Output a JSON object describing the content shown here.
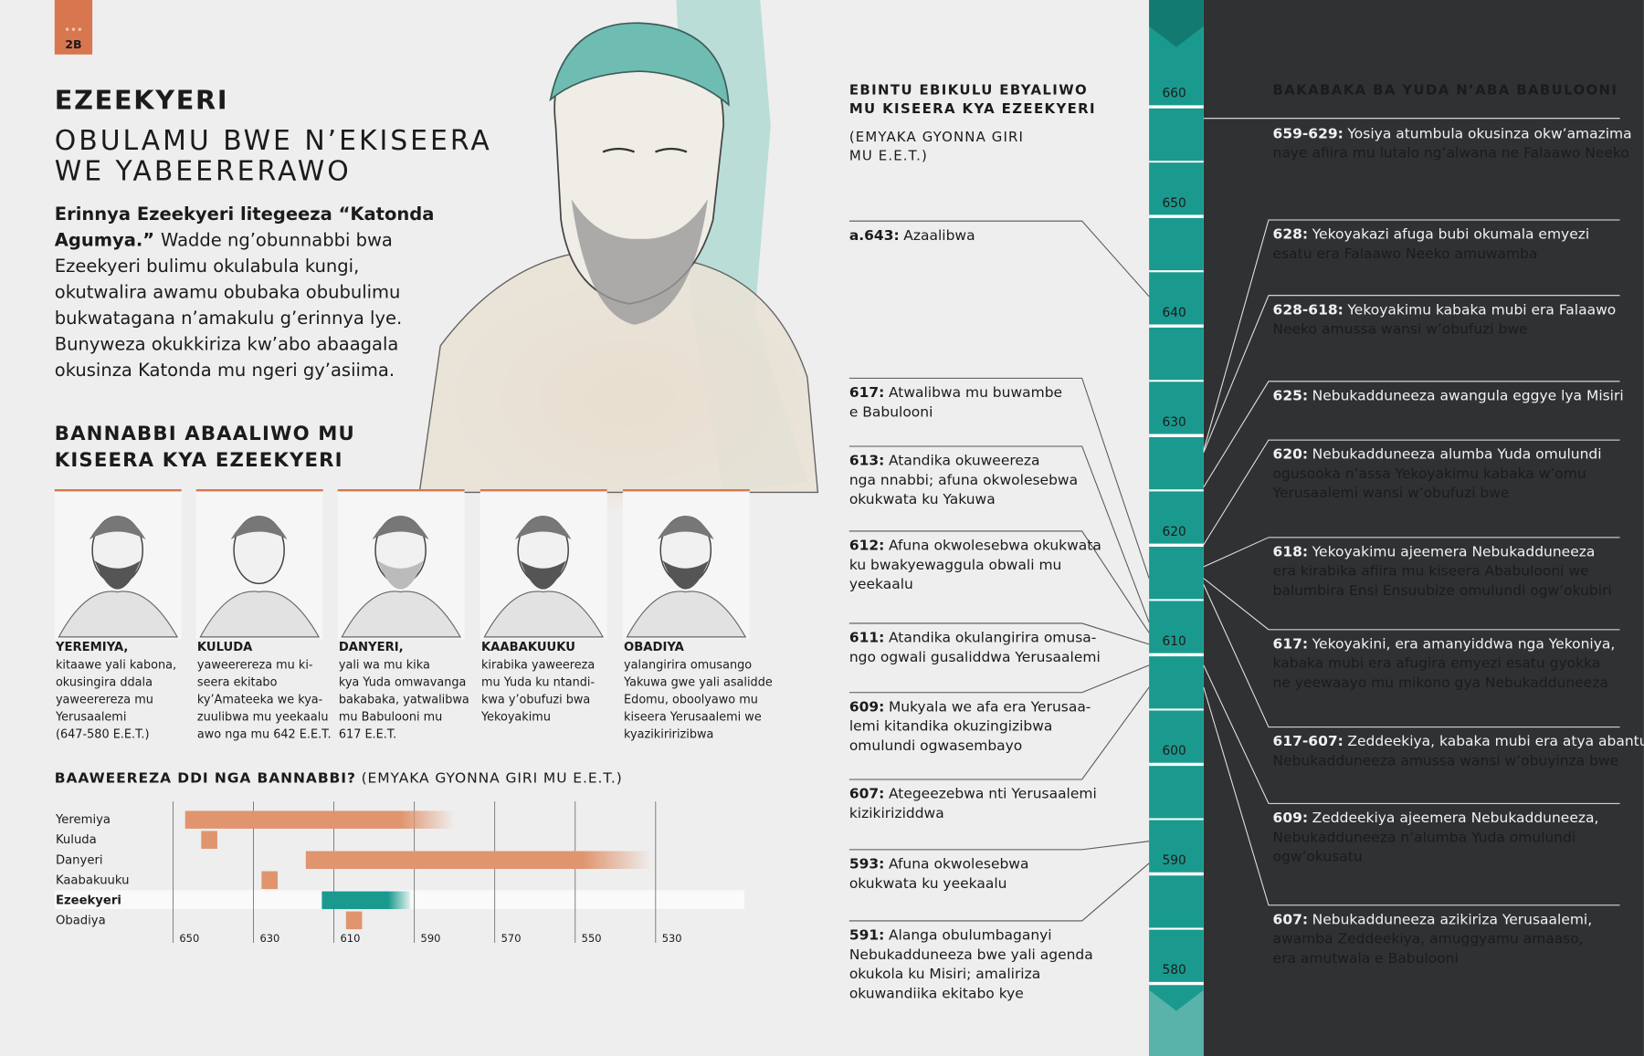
{
  "header": {
    "badge": "2B",
    "title": "EZEEKYERI",
    "subtitle": [
      "OBULAMU BWE N’EKISEERA",
      "WE YABEERERAWO"
    ]
  },
  "intro": {
    "lead": [
      "Erinnya Ezeekyeri litegeeza “Katonda",
      "Agumya.”"
    ],
    "lines": [
      "Wadde ng’obunnabbi bwa",
      "Ezeekyeri bulimu okulabula kungi,",
      "okutwalira awamu obubaka obubulimu",
      "bukwatagana n’amakulu g’erinnya lye.",
      "Bunyweza okukkiriza kw’abo abaagala",
      "okusinza Katonda mu ngeri gy’asiima."
    ]
  },
  "prophets": {
    "heading": [
      "BANNABBI ABAALIWO MU",
      "KISEERA KYA EZEEKYERI"
    ],
    "cards": [
      {
        "name": "YEREMIYA,",
        "lines": [
          "kitaawe yali kabona,",
          "okusingira ddala",
          "yaweerereza mu",
          "Yerusaalemi",
          "(647-580 E.E.T.)"
        ]
      },
      {
        "name": "KULUDA",
        "lines": [
          "yaweerereza mu ki-",
          "seera ekitabo",
          "ky’Amateeka we kya-",
          "zuulibwa mu yeekaalu",
          "awo nga mu 642 E.E.T."
        ]
      },
      {
        "name": "DANYERI,",
        "lines": [
          "yali wa mu kika",
          "kya Yuda omwavanga",
          "bakabaka, yatwalibwa",
          "mu Babulooni mu",
          "617 E.E.T."
        ]
      },
      {
        "name": "KAABAKUUKU",
        "lines": [
          "kirabika yaweereza",
          "mu Yuda ku ntandi-",
          "kwa y’obufuzi bwa",
          "Yekoyakimu"
        ]
      },
      {
        "name": "OBADIYA",
        "lines": [
          "yalangirira omusango",
          "Yakuwa gwe yali asalidde",
          "Edomu, oboolyawo mu",
          "kiseera Yerusaalemi we",
          "kyazikiririzibwa"
        ]
      }
    ]
  },
  "prophet_chart": {
    "type": "range-bar",
    "title": "BAAWEEREZA DDI NGA BANNABBI?",
    "subtitle": "(EMYAKA GYONNA GIRI MU E.E.T.)",
    "xlim": [
      650,
      510
    ],
    "xticks": [
      650,
      630,
      610,
      590,
      570,
      550,
      530
    ],
    "rows": [
      {
        "name": "Yeremiya",
        "start": 647,
        "end": 580,
        "color": "#e0956e"
      },
      {
        "name": "Kuluda",
        "start": 643,
        "end": 639,
        "color": "#e0956e"
      },
      {
        "name": "Danyeri",
        "start": 617,
        "end": 531,
        "color": "#e0956e"
      },
      {
        "name": "Kaabakuuku",
        "start": 628,
        "end": 624,
        "color": "#e0956e"
      },
      {
        "name": "Ezeekyeri",
        "start": 613,
        "end": 591,
        "color": "#1a9a8f"
      },
      {
        "name": "Obadiya",
        "start": 607,
        "end": 603,
        "color": "#e0956e"
      }
    ]
  },
  "events": {
    "heading": [
      "EBINTU EBIKULU EBYALIWO",
      "MU KISEERA KYA EZEEKYERI"
    ],
    "note": [
      "(EMYAKA GYONNA GIRI",
      "MU E.E.T.)"
    ],
    "items": [
      {
        "label": "a.643:",
        "lines": [
          "Azaalibwa"
        ]
      },
      {
        "label": "617:",
        "lines": [
          "Atwalibwa mu buwambe",
          "e Babulooni"
        ]
      },
      {
        "label": "613:",
        "lines": [
          "Atandika okuweereza",
          "nga nnabbi; afuna okwolesebwa",
          "okukwata ku Yakuwa"
        ]
      },
      {
        "label": "612:",
        "lines": [
          "Afuna okwolesebwa okukwata",
          "ku bwakyewaggula obwali mu",
          "yeekaalu"
        ]
      },
      {
        "label": "611:",
        "lines": [
          "Atandika okulangirira omusa-",
          "ngo ogwali gusaliddwa Yerusaalemi"
        ]
      },
      {
        "label": "609:",
        "lines": [
          "Mukyala we afa era Yerusaa-",
          "lemi kitandika okuzingizibwa",
          "omulundi ogwasembayo"
        ]
      },
      {
        "label": "607:",
        "lines": [
          "Ategeezebwa nti Yerusaalemi",
          "kizikiriziddwa"
        ]
      },
      {
        "label": "593:",
        "lines": [
          "Afuna okwolesebwa",
          "okukwata ku yeekaalu"
        ]
      },
      {
        "label": "591:",
        "lines": [
          "Alanga obulumbaganyi",
          "Nebukadduneeza bwe yali agenda",
          "okukola ku Misiri; amaliriza",
          "okuwandiika ekitabo kye"
        ]
      }
    ]
  },
  "timeline": {
    "years": [
      660,
      650,
      640,
      630,
      620,
      610,
      600,
      590,
      580
    ]
  },
  "kings": {
    "heading": "BAKABAKA BA YUDA N’ABA BABULOONI",
    "items": [
      {
        "label": "659-629:",
        "lines": [
          "Yosiya atumbula okusinza okw’amazima",
          "naye afiira mu lutalo ng’alwana ne Falaawo Neeko"
        ]
      },
      {
        "label": "628:",
        "lines": [
          "Yekoyakazi afuga bubi okumala emyezi",
          "esatu era Falaawo Neeko amuwamba"
        ]
      },
      {
        "label": "628-618:",
        "lines": [
          "Yekoyakimu kabaka mubi era Falaawo",
          "Neeko amussa wansi w’obufuzi bwe"
        ]
      },
      {
        "label": "625:",
        "lines": [
          "Nebukadduneeza awangula eggye lya Misiri"
        ]
      },
      {
        "label": "620:",
        "lines": [
          "Nebukadduneeza alumba Yuda omulundi",
          "ogusooka n’assa Yekoyakimu kabaka w’omu",
          "Yerusaalemi wansi w’obufuzi bwe"
        ]
      },
      {
        "label": "618:",
        "lines": [
          "Yekoyakimu ajeemera Nebukadduneeza",
          "era kirabika afiira mu kiseera Ababulooni we",
          "balumbira Ensi Ensuubize omulundi ogw’okubiri"
        ]
      },
      {
        "label": "617:",
        "lines": [
          "Yekoyakini, era amanyiddwa nga Yekoniya,",
          "kabaka mubi era afugira emyezi esatu gyokka",
          "ne yeewaayo mu mikono gya Nebukadduneeza"
        ]
      },
      {
        "label": "617-607:",
        "lines": [
          "Zeddeekiya, kabaka mubi era atya abantu,",
          "Nebukadduneeza amussa wansi w’obuyinza bwe"
        ]
      },
      {
        "label": "609:",
        "lines": [
          "Zeddeekiya ajeemera Nebukadduneeza,",
          "Nebukadduneeza n’alumba Yuda omulundi",
          "ogw’okusatu"
        ]
      },
      {
        "label": "607:",
        "lines": [
          "Nebukadduneeza azikiriza Yerusaalemi,",
          "awamba Zeddeekiya, amuggyamu amaaso,",
          "era amutwala e Babulooni"
        ]
      }
    ]
  }
}
